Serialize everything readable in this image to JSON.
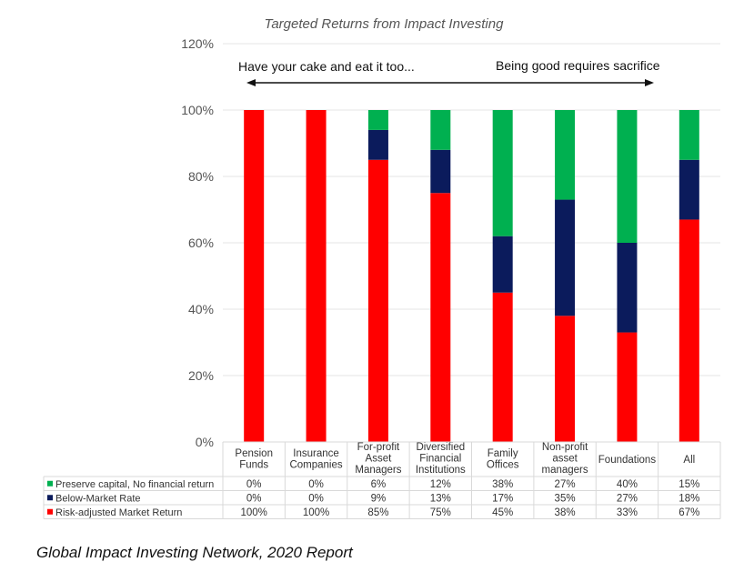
{
  "chart_data": {
    "type": "bar",
    "stacked": true,
    "title": "Targeted Returns from Impact Investing",
    "categories": [
      [
        "Pension",
        "Funds"
      ],
      [
        "Insurance",
        "Companies"
      ],
      [
        "For-profit",
        "Asset",
        "Managers"
      ],
      [
        "Diversified",
        "Financial",
        "Institutions"
      ],
      [
        "Family",
        "Offices"
      ],
      [
        "Non-profit",
        "asset",
        "managers"
      ],
      [
        "Foundations"
      ],
      [
        "All"
      ]
    ],
    "series": [
      {
        "name": "Risk-adjusted Market Return",
        "color": "#ff0000",
        "values": [
          100,
          100,
          85,
          75,
          45,
          38,
          33,
          67
        ]
      },
      {
        "name": "Below-Market Rate",
        "color": "#0b1b5c",
        "values": [
          0,
          0,
          9,
          13,
          17,
          35,
          27,
          18
        ]
      },
      {
        "name": "Preserve capital, No financial return",
        "color": "#00b050",
        "values": [
          0,
          0,
          6,
          12,
          38,
          27,
          40,
          15
        ]
      }
    ],
    "ylim": [
      0,
      120
    ],
    "yticks": [
      0,
      20,
      40,
      60,
      80,
      100,
      120
    ],
    "ytick_suffix": "%",
    "grid": true,
    "legend": "data table below chart",
    "annotations": {
      "left": "Have your cake and eat it too...",
      "right": "Being good requires sacrifice"
    },
    "table_rows": [
      {
        "label": "Preserve capital, No financial return",
        "color": "#00b050",
        "cells": [
          "0%",
          "0%",
          "6%",
          "12%",
          "38%",
          "27%",
          "40%",
          "15%"
        ]
      },
      {
        "label": "Below-Market Rate",
        "color": "#0b1b5c",
        "cells": [
          "0%",
          "0%",
          "9%",
          "13%",
          "17%",
          "35%",
          "27%",
          "18%"
        ]
      },
      {
        "label": "Risk-adjusted Market Return",
        "color": "#ff0000",
        "cells": [
          "100%",
          "100%",
          "85%",
          "75%",
          "45%",
          "38%",
          "33%",
          "67%"
        ]
      }
    ]
  },
  "caption": "Global Impact Investing Network, 2020 Report"
}
